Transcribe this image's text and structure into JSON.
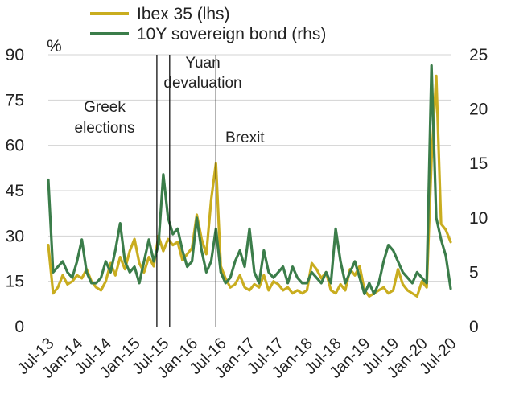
{
  "chart_data": {
    "type": "line",
    "y_unit": "%",
    "ylim_left": [
      0,
      90
    ],
    "ylim_right": [
      0,
      25
    ],
    "yticks_left": [
      "0",
      "15",
      "30",
      "45",
      "60",
      "75",
      "90"
    ],
    "yticks_right": [
      "0",
      "5",
      "10",
      "15",
      "20",
      "25"
    ],
    "x_ticks": [
      "Jul-13",
      "Jan-14",
      "Jul-14",
      "Jan-15",
      "Jul-15",
      "Jan-16",
      "Jul-16",
      "Jan-17",
      "Jul-17",
      "Jan-18",
      "Jul-18",
      "Jan-19",
      "Jul-19",
      "Jan-20",
      "Jul-20"
    ],
    "grid": true,
    "legend_position": "top",
    "series": [
      {
        "name": "Ibex 35 (lhs)",
        "axis": "left",
        "color": "#c9ad1f",
        "x": [
          "Jul-13",
          "Aug-13",
          "Sep-13",
          "Oct-13",
          "Nov-13",
          "Dec-13",
          "Jan-14",
          "Feb-14",
          "Mar-14",
          "Apr-14",
          "May-14",
          "Jun-14",
          "Jul-14",
          "Aug-14",
          "Sep-14",
          "Oct-14",
          "Nov-14",
          "Dec-14",
          "Jan-15",
          "Feb-15",
          "Mar-15",
          "Apr-15",
          "May-15",
          "Jun-15",
          "Jul-15",
          "Aug-15",
          "Sep-15",
          "Oct-15",
          "Nov-15",
          "Dec-15",
          "Jan-16",
          "Feb-16",
          "Mar-16",
          "Apr-16",
          "May-16",
          "Jun-16",
          "Jul-16",
          "Aug-16",
          "Sep-16",
          "Oct-16",
          "Nov-16",
          "Dec-16",
          "Jan-17",
          "Feb-17",
          "Mar-17",
          "Apr-17",
          "May-17",
          "Jun-17",
          "Jul-17",
          "Aug-17",
          "Sep-17",
          "Oct-17",
          "Nov-17",
          "Dec-17",
          "Jan-18",
          "Feb-18",
          "Mar-18",
          "Apr-18",
          "May-18",
          "Jun-18",
          "Jul-18",
          "Aug-18",
          "Sep-18",
          "Oct-18",
          "Nov-18",
          "Dec-18",
          "Jan-19",
          "Feb-19",
          "Mar-19",
          "Apr-19",
          "May-19",
          "Jun-19",
          "Jul-19",
          "Aug-19",
          "Sep-19",
          "Oct-19",
          "Nov-19",
          "Dec-19",
          "Jan-20",
          "Feb-20",
          "Mar-20",
          "Apr-20",
          "May-20",
          "Jun-20",
          "Jul-20"
        ],
        "values": [
          27,
          11,
          13,
          17,
          14,
          15,
          17,
          16,
          19,
          15,
          13,
          12,
          15,
          21,
          17,
          23,
          19,
          25,
          29,
          21,
          18,
          23,
          20,
          30,
          25,
          29,
          27,
          28,
          22,
          24,
          26,
          37,
          29,
          24,
          42,
          54,
          20,
          16,
          13,
          14,
          17,
          13,
          12,
          14,
          13,
          17,
          12,
          15,
          14,
          12,
          13,
          11,
          12,
          11,
          12,
          21,
          19,
          16,
          18,
          12,
          11,
          14,
          12,
          19,
          17,
          20,
          12,
          10,
          11,
          12,
          13,
          11,
          12,
          19,
          14,
          12,
          11,
          10,
          15,
          13,
          55,
          83,
          34,
          32,
          28
        ]
      },
      {
        "name": "10Y sovereign bond (rhs)",
        "axis": "right",
        "color": "#3b7d4a",
        "x": [
          "Jul-13",
          "Aug-13",
          "Sep-13",
          "Oct-13",
          "Nov-13",
          "Dec-13",
          "Jan-14",
          "Feb-14",
          "Mar-14",
          "Apr-14",
          "May-14",
          "Jun-14",
          "Jul-14",
          "Aug-14",
          "Sep-14",
          "Oct-14",
          "Nov-14",
          "Dec-14",
          "Jan-15",
          "Feb-15",
          "Mar-15",
          "Apr-15",
          "May-15",
          "Jun-15",
          "Jul-15",
          "Aug-15",
          "Sep-15",
          "Oct-15",
          "Nov-15",
          "Dec-15",
          "Jan-16",
          "Feb-16",
          "Mar-16",
          "Apr-16",
          "May-16",
          "Jun-16",
          "Jul-16",
          "Aug-16",
          "Sep-16",
          "Oct-16",
          "Nov-16",
          "Dec-16",
          "Jan-17",
          "Feb-17",
          "Mar-17",
          "Apr-17",
          "May-17",
          "Jun-17",
          "Jul-17",
          "Aug-17",
          "Sep-17",
          "Oct-17",
          "Nov-17",
          "Dec-17",
          "Jan-18",
          "Feb-18",
          "Mar-18",
          "Apr-18",
          "May-18",
          "Jun-18",
          "Jul-18",
          "Aug-18",
          "Sep-18",
          "Oct-18",
          "Nov-18",
          "Dec-18",
          "Jan-19",
          "Feb-19",
          "Mar-19",
          "Apr-19",
          "May-19",
          "Jun-19",
          "Jul-19",
          "Aug-19",
          "Sep-19",
          "Oct-19",
          "Nov-19",
          "Dec-19",
          "Jan-20",
          "Feb-20",
          "Mar-20",
          "Apr-20",
          "May-20",
          "Jun-20",
          "Jul-20"
        ],
        "values": [
          13.5,
          5,
          5.5,
          6,
          5,
          4.5,
          6,
          8,
          5,
          4,
          4,
          4.5,
          6,
          5,
          7,
          9.5,
          6,
          5,
          5.5,
          4,
          6,
          8,
          6,
          7.5,
          14,
          10,
          8.5,
          9,
          7,
          5.5,
          6,
          10,
          7,
          5,
          6,
          9,
          5,
          4,
          4.5,
          6,
          7,
          5.5,
          9,
          5,
          4,
          7,
          5,
          4.5,
          5,
          5.5,
          4,
          5.5,
          4.5,
          4,
          4,
          5,
          4.5,
          4,
          5,
          4,
          9,
          6,
          4,
          5,
          6,
          4.5,
          3,
          4,
          3,
          4,
          6,
          7.5,
          7,
          6,
          5,
          4.5,
          4,
          5,
          4.5,
          4,
          24,
          10,
          8,
          6.5,
          3.5
        ]
      }
    ],
    "annotations": [
      {
        "lines": [
          "Greek",
          "elections"
        ],
        "x": "Jun-15"
      },
      {
        "lines": [
          "Yuan",
          "devaluation"
        ],
        "x": "Aug-15"
      },
      {
        "lines": [
          "Brexit"
        ],
        "x": "Jun-16"
      }
    ]
  }
}
